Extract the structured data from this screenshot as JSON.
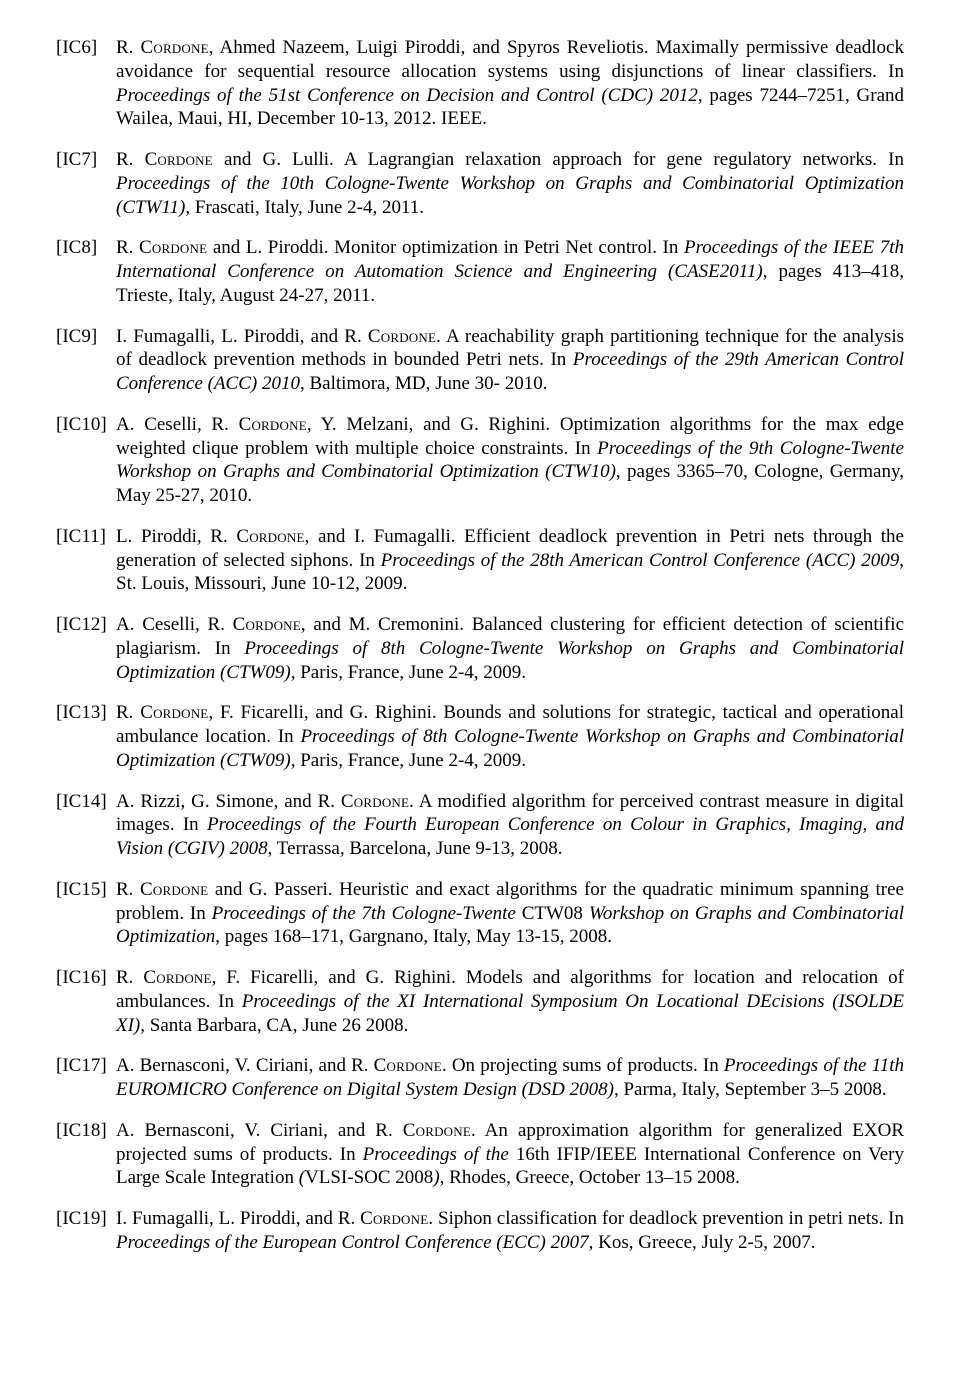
{
  "refs": [
    {
      "label": "[IC6]",
      "segments": [
        {
          "t": "R. "
        },
        {
          "t": "Cordone",
          "sc": true
        },
        {
          "t": ", Ahmed Nazeem, Luigi Piroddi, and Spyros Reveliotis. Maximally permissive deadlock avoidance for sequential resource allocation systems using disjunctions of linear classifiers. In "
        },
        {
          "t": "Proceedings of the 51st Conference on Decision and Control (CDC) 2012",
          "i": true
        },
        {
          "t": ", pages 7244–7251, Grand Wailea, Maui, HI, December 10-13, 2012. IEEE."
        }
      ]
    },
    {
      "label": "[IC7]",
      "segments": [
        {
          "t": "R. "
        },
        {
          "t": "Cordone",
          "sc": true
        },
        {
          "t": " and G. Lulli. A Lagrangian relaxation approach for gene regulatory networks. In "
        },
        {
          "t": "Proceedings of the 10th Cologne-Twente Workshop on Graphs and Combinatorial Optimization (CTW11)",
          "i": true
        },
        {
          "t": ", Frascati, Italy, June 2-4, 2011."
        }
      ]
    },
    {
      "label": "[IC8]",
      "segments": [
        {
          "t": "R. "
        },
        {
          "t": "Cordone",
          "sc": true
        },
        {
          "t": " and L. Piroddi. Monitor optimization in Petri Net control. In "
        },
        {
          "t": "Proceedings of the IEEE 7th International Conference on Automation Science and Engineering (CASE2011)",
          "i": true
        },
        {
          "t": ", pages 413–418, Trieste, Italy, August 24-27, 2011."
        }
      ]
    },
    {
      "label": "[IC9]",
      "segments": [
        {
          "t": "I. Fumagalli, L. Piroddi, and R. "
        },
        {
          "t": "Cordone",
          "sc": true
        },
        {
          "t": ".  A reachability graph partitioning technique for the analysis of deadlock prevention methods in bounded Petri nets. In "
        },
        {
          "t": "Proceedings of the 29th American Control Conference (ACC) 2010",
          "i": true
        },
        {
          "t": ", Baltimora, MD, June 30- 2010."
        }
      ]
    },
    {
      "label": "[IC10]",
      "segments": [
        {
          "t": "A. Ceselli, R. "
        },
        {
          "t": "Cordone",
          "sc": true
        },
        {
          "t": ", Y. Melzani, and G. Righini.  Optimization algorithms for the max edge weighted clique problem with multiple choice constraints. In "
        },
        {
          "t": "Proceedings of the 9th Cologne-Twente Workshop on Graphs and Combinatorial Optimization (CTW10)",
          "i": true
        },
        {
          "t": ", pages 3365–70, Cologne, Germany, May 25-27, 2010."
        }
      ]
    },
    {
      "label": "[IC11]",
      "segments": [
        {
          "t": "L. Piroddi, R. "
        },
        {
          "t": "Cordone",
          "sc": true
        },
        {
          "t": ", and I. Fumagalli.  Efficient deadlock prevention in Petri nets through the generation of selected siphons. In "
        },
        {
          "t": "Proceedings of the 28th American Control Conference (ACC) 2009",
          "i": true
        },
        {
          "t": ", St. Louis, Missouri, June 10-12, 2009."
        }
      ]
    },
    {
      "label": "[IC12]",
      "segments": [
        {
          "t": "A. Ceselli, R. "
        },
        {
          "t": "Cordone",
          "sc": true
        },
        {
          "t": ", and M. Cremonini. Balanced clustering for efficient detection of scientific plagiarism. In "
        },
        {
          "t": "Proceedings of 8th Cologne-Twente Workshop on Graphs and Combinatorial Optimization (CTW09)",
          "i": true
        },
        {
          "t": ", Paris, France, June 2-4, 2009."
        }
      ]
    },
    {
      "label": "[IC13]",
      "segments": [
        {
          "t": "R. "
        },
        {
          "t": "Cordone",
          "sc": true
        },
        {
          "t": ", F. Ficarelli, and G. Righini.  Bounds and solutions for strategic, tactical and operational ambulance location.  In "
        },
        {
          "t": "Proceedings of 8th Cologne-Twente Workshop on Graphs and Combinatorial Optimization (CTW09)",
          "i": true
        },
        {
          "t": ", Paris, France, June 2-4, 2009."
        }
      ]
    },
    {
      "label": "[IC14]",
      "segments": [
        {
          "t": "A. Rizzi, G. Simone, and R. "
        },
        {
          "t": "Cordone",
          "sc": true
        },
        {
          "t": ". A modified algorithm for perceived contrast measure in digital images. In "
        },
        {
          "t": "Proceedings of the Fourth European Conference on Colour in Graphics, Imaging, and Vision (CGIV) 2008",
          "i": true
        },
        {
          "t": ", Terrassa, Barcelona, June 9-13, 2008."
        }
      ]
    },
    {
      "label": "[IC15]",
      "segments": [
        {
          "t": "R. "
        },
        {
          "t": "Cordone",
          "sc": true
        },
        {
          "t": " and G. Passeri.  Heuristic and exact algorithms for the quadratic minimum spanning tree problem.  In "
        },
        {
          "t": "Proceedings of the 7th Cologne-Twente ",
          "i": true
        },
        {
          "t": "CTW08 "
        },
        {
          "t": "Workshop on Graphs and Combinatorial Optimization",
          "i": true
        },
        {
          "t": ", pages 168–171, Gargnano, Italy, May 13-15, 2008."
        }
      ]
    },
    {
      "label": "[IC16]",
      "segments": [
        {
          "t": "R. "
        },
        {
          "t": "Cordone",
          "sc": true
        },
        {
          "t": ", F. Ficarelli, and G. Righini.  Models and algorithms for location and relocation of ambulances. In "
        },
        {
          "t": "Proceedings of the XI International Symposium On Locational DEcisions (ISOLDE XI)",
          "i": true
        },
        {
          "t": ", Santa Barbara, CA, June 26 2008."
        }
      ]
    },
    {
      "label": "[IC17]",
      "segments": [
        {
          "t": "A. Bernasconi, V. Ciriani, and R. "
        },
        {
          "t": "Cordone",
          "sc": true
        },
        {
          "t": ". On projecting sums of products. In "
        },
        {
          "t": "Proceedings of the 11th EUROMICRO Conference on Digital System Design (DSD 2008)",
          "i": true
        },
        {
          "t": ", Parma, Italy, September 3–5 2008."
        }
      ]
    },
    {
      "label": "[IC18]",
      "segments": [
        {
          "t": "A. Bernasconi, V. Ciriani, and R. "
        },
        {
          "t": "Cordone",
          "sc": true
        },
        {
          "t": ". An approximation algorithm for generalized EXOR projected sums of products. In "
        },
        {
          "t": "Proceedings of the ",
          "i": true
        },
        {
          "t": "16th IFIP/IEEE International Conference on Very Large Scale Integration "
        },
        {
          "t": "(",
          "i": true
        },
        {
          "t": "VLSI-SOC 2008"
        },
        {
          "t": ")",
          "i": true
        },
        {
          "t": ", Rhodes, Greece, October 13–15 2008."
        }
      ]
    },
    {
      "label": "[IC19]",
      "segments": [
        {
          "t": "I. Fumagalli, L. Piroddi, and R. "
        },
        {
          "t": "Cordone",
          "sc": true
        },
        {
          "t": ". Siphon classification for deadlock prevention in petri nets. In "
        },
        {
          "t": "Proceedings of the European Control Conference (ECC) 2007",
          "i": true
        },
        {
          "t": ", Kos, Greece, July 2-5, 2007."
        }
      ]
    }
  ]
}
